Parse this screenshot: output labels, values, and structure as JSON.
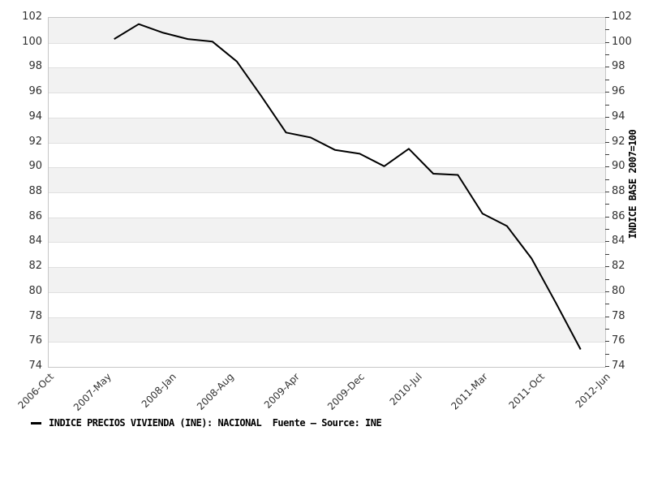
{
  "chart_data": {
    "type": "line",
    "legend_text": "INDICE PRECIOS VIVIENDA (INE): NACIONAL  Fuente – Source: INE",
    "series_name": "INDICE PRECIOS VIVIENDA (INE): NACIONAL",
    "source_note": "Fuente – Source: INE",
    "right_axis_label": "INDICE BASE 2007=100",
    "ylim": [
      74,
      102
    ],
    "y_tick_labels": [
      102,
      100,
      98,
      96,
      94,
      92,
      90,
      88,
      86,
      84,
      82,
      80,
      78,
      76,
      74
    ],
    "y_minor_tick_step": 1,
    "grid": "horizontal, alternating shaded bands every 2 units",
    "legend_position": "bottom-left",
    "x_ticks": [
      {
        "label": "2006-Oct",
        "month": 0
      },
      {
        "label": "2007-May",
        "month": 7
      },
      {
        "label": "2008-Jan",
        "month": 15
      },
      {
        "label": "2008-Aug",
        "month": 22
      },
      {
        "label": "2009-Apr",
        "month": 30
      },
      {
        "label": "2009-Dec",
        "month": 38
      },
      {
        "label": "2010-Jul",
        "month": 45
      },
      {
        "label": "2011-Mar",
        "month": 53
      },
      {
        "label": "2011-Oct",
        "month": 60
      },
      {
        "label": "2012-Jun",
        "month": 68
      }
    ],
    "x": [
      "2007-Jun",
      "2007-Sep",
      "2007-Dec",
      "2008-Mar",
      "2008-Jun",
      "2008-Sep",
      "2008-Dec",
      "2009-Mar",
      "2009-Jun",
      "2009-Sep",
      "2009-Dec",
      "2010-Mar",
      "2010-Jun",
      "2010-Sep",
      "2010-Dec",
      "2011-Mar",
      "2011-Jun",
      "2011-Sep",
      "2011-Dec",
      "2012-Mar"
    ],
    "x_month_offsets": [
      8,
      11,
      14,
      17,
      20,
      23,
      26,
      29,
      32,
      35,
      38,
      41,
      44,
      47,
      50,
      53,
      56,
      59,
      62,
      65
    ],
    "values": [
      100.3,
      101.5,
      100.8,
      100.3,
      100.1,
      98.5,
      95.7,
      92.8,
      92.4,
      91.4,
      91.1,
      90.1,
      91.5,
      89.5,
      89.4,
      86.3,
      85.3,
      82.7,
      79.1,
      75.4
    ],
    "colors": {
      "line": "#000000",
      "band": "#f2f2f2",
      "gridline": "#e0e0e0",
      "border": "#c6c6c6",
      "tick": "#3c3c3c",
      "tick_label": "#303030",
      "background": "#ffffff"
    }
  }
}
